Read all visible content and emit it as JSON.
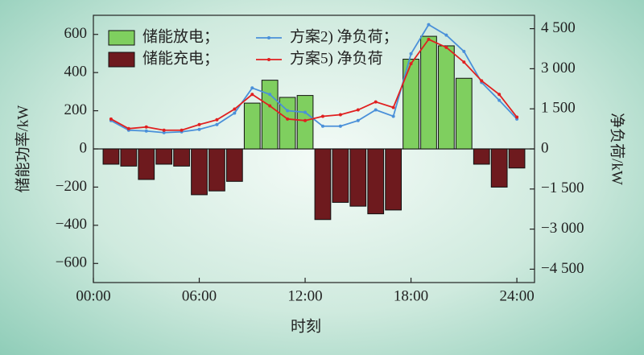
{
  "chart_data": {
    "type": "bar-line",
    "x": [
      1,
      2,
      3,
      4,
      5,
      6,
      7,
      8,
      9,
      10,
      11,
      12,
      13,
      14,
      15,
      16,
      17,
      18,
      19,
      20,
      21,
      22,
      23,
      24
    ],
    "xlim": [
      0,
      25
    ],
    "xticks": [
      {
        "value": 0,
        "label": "00:00"
      },
      {
        "value": 6,
        "label": "06:00"
      },
      {
        "value": 12,
        "label": "12:00"
      },
      {
        "value": 18,
        "label": "18:00"
      },
      {
        "value": 24,
        "label": "24:00"
      }
    ],
    "xlabel": "时刻",
    "ylabel": "储能功率/kW",
    "y2label": "净负荷/kW",
    "ylim": [
      -700,
      700
    ],
    "yticks": [
      {
        "value": -600,
        "label": "−600"
      },
      {
        "value": -400,
        "label": "−400"
      },
      {
        "value": -200,
        "label": "−200"
      },
      0,
      200,
      400,
      600
    ],
    "y2lim": [
      -5000,
      5000
    ],
    "y2ticks": [
      {
        "value": -4500,
        "label": "−4 500"
      },
      {
        "value": -3000,
        "label": "−3 000"
      },
      {
        "value": -1500,
        "label": "−1 500"
      },
      0,
      {
        "value": 1500,
        "label": "1 500"
      },
      {
        "value": 3000,
        "label": "3 000"
      },
      {
        "value": 4500,
        "label": "4 500"
      }
    ],
    "series": [
      {
        "name": "储能放电；",
        "kind": "bar",
        "color": "#7fcf5f",
        "values": [
          null,
          null,
          null,
          null,
          null,
          null,
          null,
          null,
          240,
          360,
          270,
          280,
          null,
          null,
          null,
          null,
          null,
          470,
          590,
          540,
          370,
          null,
          null,
          null
        ]
      },
      {
        "name": "储能充电；",
        "kind": "bar",
        "color": "#6e1a1e",
        "values": [
          -80,
          -90,
          -160,
          -80,
          -90,
          -240,
          -220,
          -170,
          null,
          null,
          null,
          null,
          -370,
          -280,
          -300,
          -340,
          -320,
          null,
          null,
          null,
          null,
          -80,
          -200,
          -100
        ]
      },
      {
        "name": "方案2) 净负荷；",
        "kind": "line",
        "axis": "y2",
        "color": "#4a90d9",
        "values": [
          1060,
          700,
          670,
          610,
          640,
          730,
          910,
          1340,
          2280,
          2040,
          1430,
          1370,
          850,
          850,
          1060,
          1460,
          1220,
          3560,
          4650,
          4260,
          3650,
          2490,
          1820,
          1120
        ]
      },
      {
        "name": "方案5) 净负荷",
        "kind": "line",
        "axis": "y2",
        "color": "#e02020",
        "values": [
          1120,
          760,
          820,
          700,
          700,
          910,
          1090,
          1490,
          2040,
          1610,
          1120,
          1060,
          1220,
          1280,
          1460,
          1760,
          1550,
          3190,
          4100,
          3800,
          3250,
          2550,
          2040,
          1190
        ]
      }
    ]
  }
}
